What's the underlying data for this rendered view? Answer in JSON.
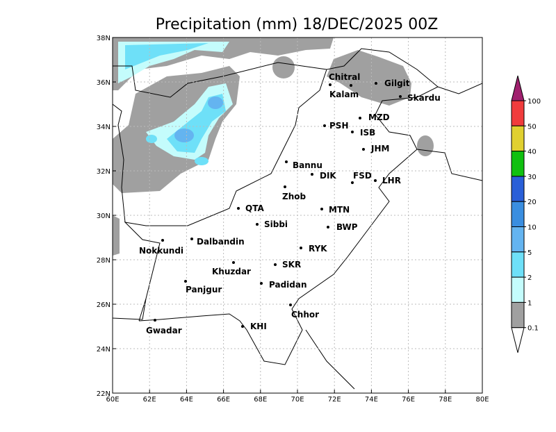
{
  "title": "Precipitation (mm) 18/DEC/2025 00Z",
  "x_ticks": [
    "60E",
    "62E",
    "64E",
    "66E",
    "68E",
    "70E",
    "72E",
    "74E",
    "76E",
    "78E",
    "80E"
  ],
  "y_ticks": [
    "38N",
    "36N",
    "34N",
    "32N",
    "30N",
    "28N",
    "26N",
    "24N",
    "22N"
  ],
  "cities": [
    "Chitral",
    "Kalam",
    "Gilgit",
    "Skardu",
    "MZD",
    "PSH",
    "ISB",
    "JHM",
    "Bannu",
    "DIK",
    "FSD",
    "LHR",
    "Zhob",
    "QTA",
    "MTN",
    "Sibbi",
    "BWP",
    "Dalbandin",
    "Nokkundi",
    "RYK",
    "SKR",
    "Khuzdar",
    "Padidan",
    "Panjgur",
    "Chhor",
    "KHI",
    "Gwadar"
  ],
  "colorbar": {
    "levels": [
      100,
      50,
      40,
      30,
      20,
      10,
      5,
      2,
      1,
      0.1
    ],
    "colors": [
      "#a0206e",
      "#f03c3c",
      "#e0d030",
      "#10c010",
      "#2a5fd8",
      "#3a8ee0",
      "#64b4f0",
      "#6ee0f8",
      "#c4fcfc",
      "#a0a0a0",
      "#ffffff"
    ]
  }
}
